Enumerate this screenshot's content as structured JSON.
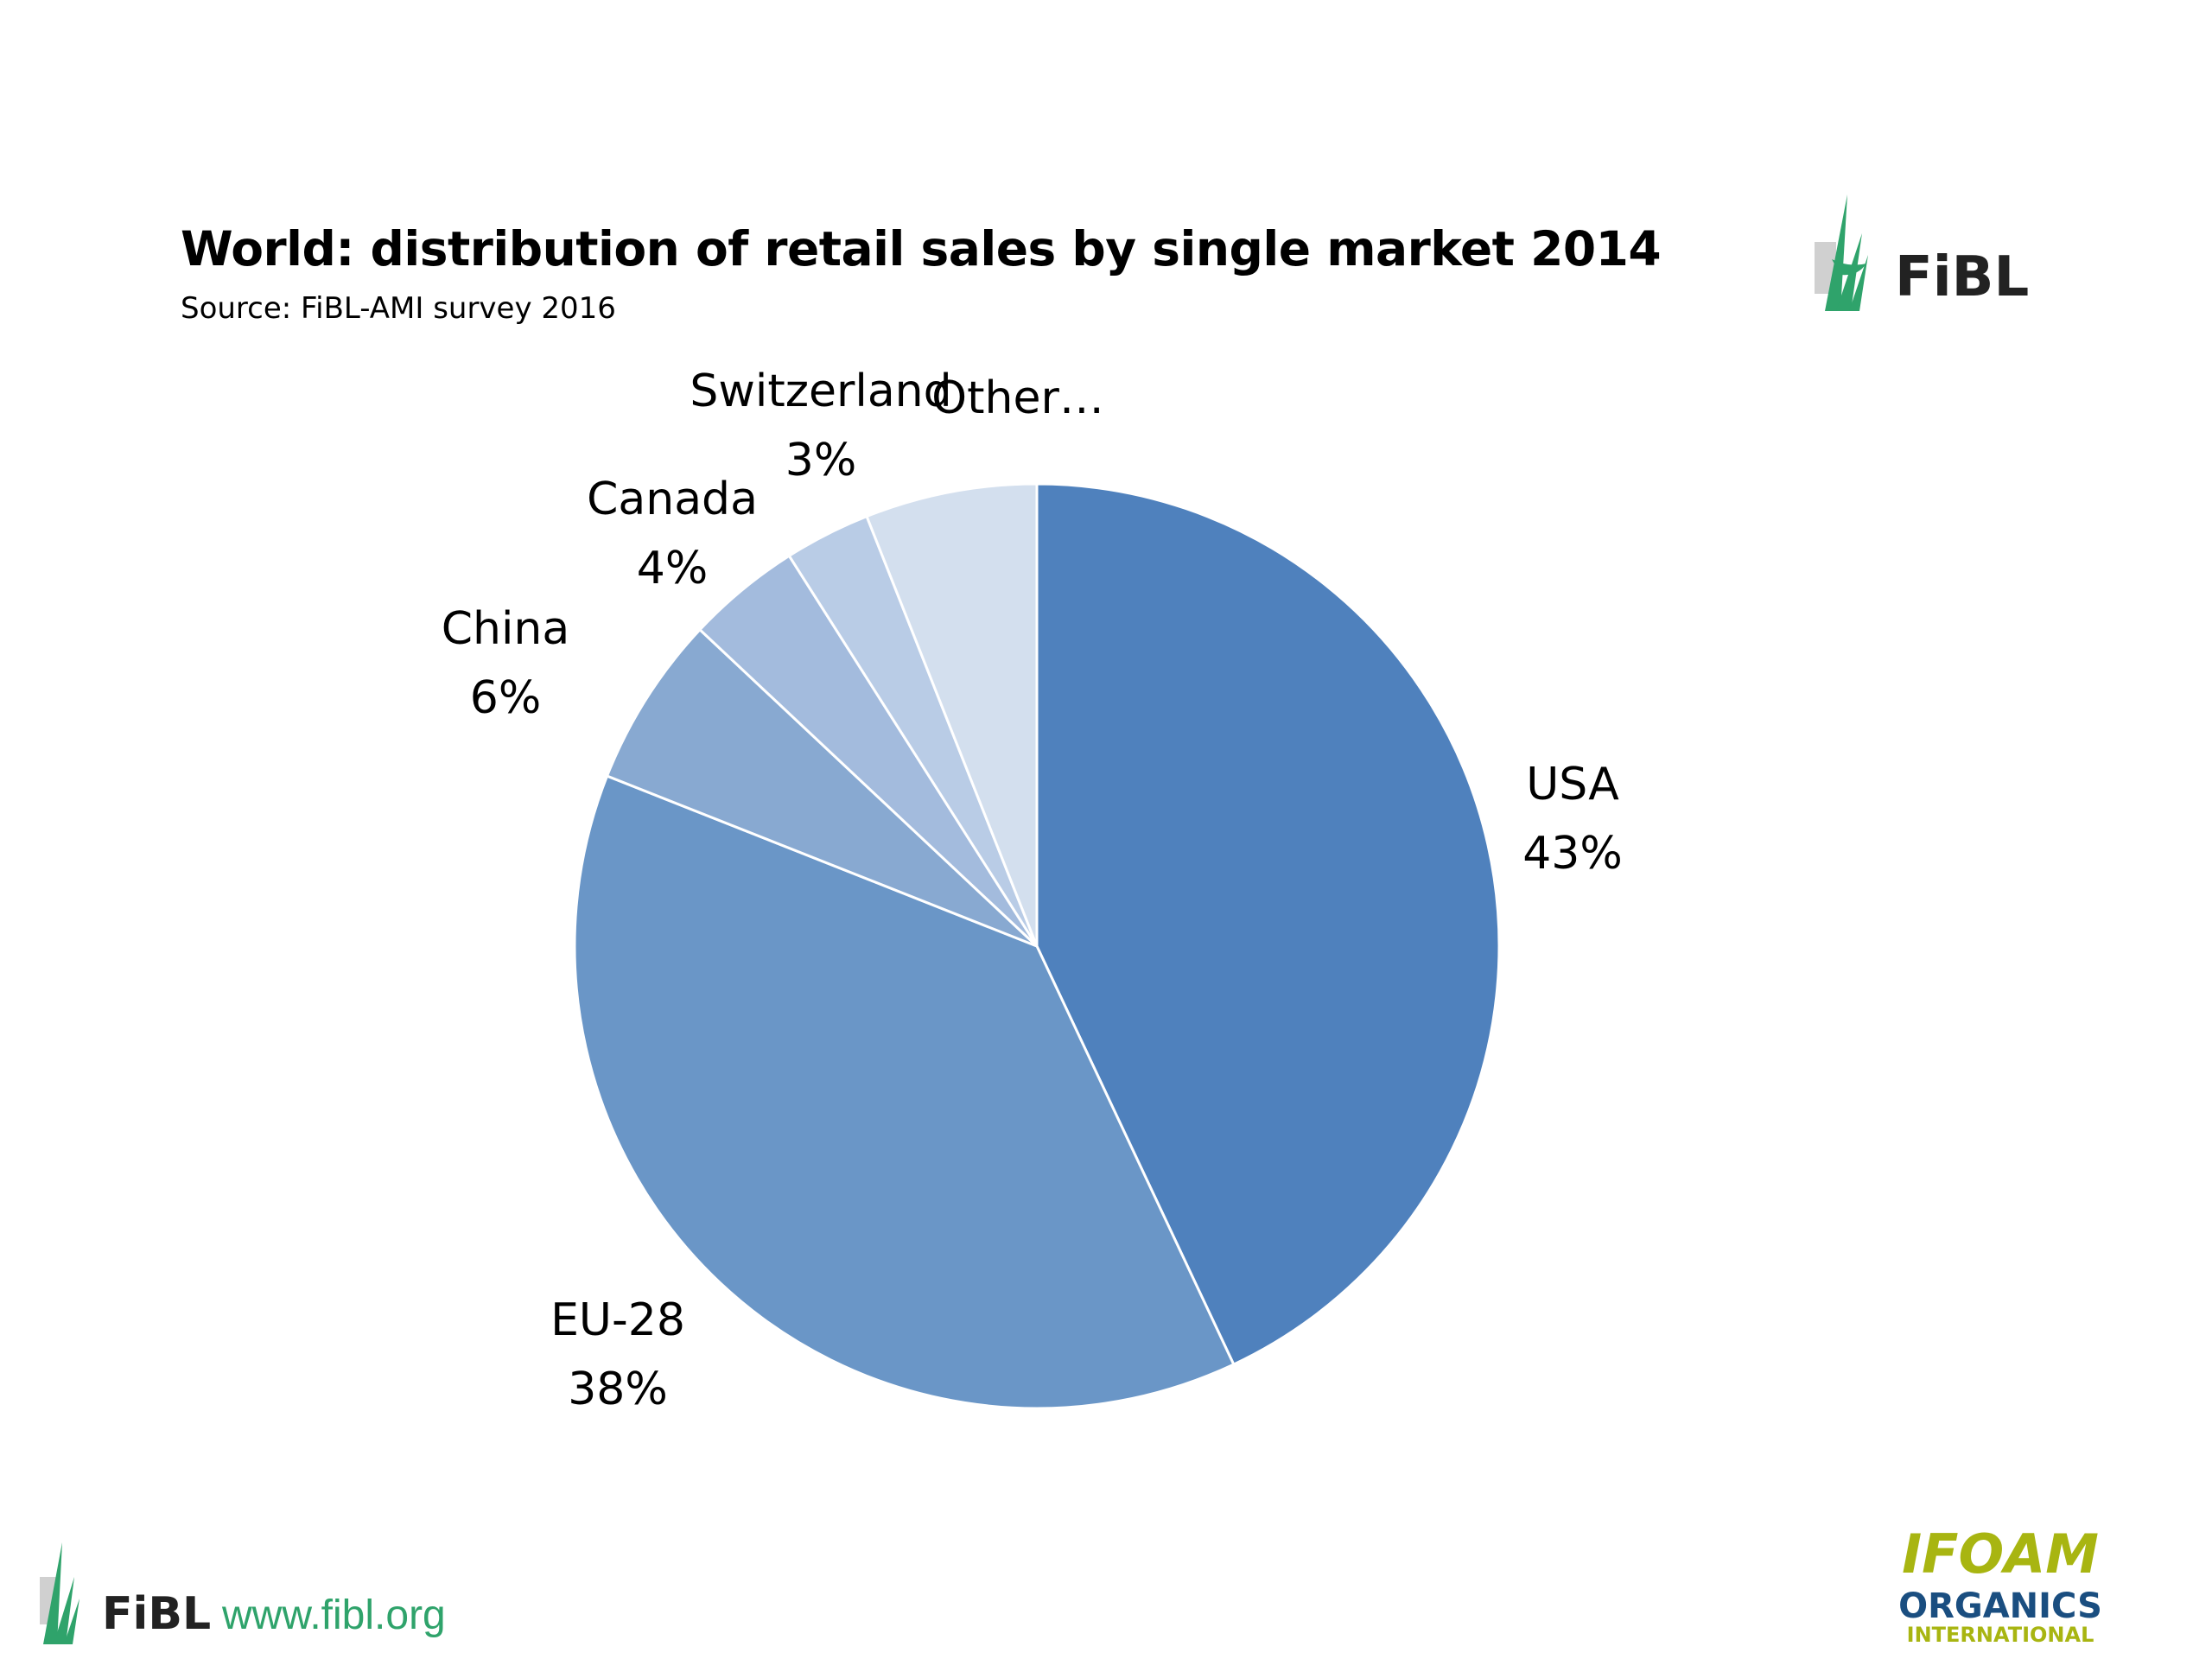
{
  "slide": {
    "title": "World: distribution of retail sales by single market 2014",
    "subtitle": "Source: FiBL-AMI survey 2016"
  },
  "logos": {
    "top_right": {
      "icon": "fibl-logo-icon",
      "text": "FiBL"
    },
    "footer_left": {
      "icon": "fibl-logo-icon",
      "text": "FiBL"
    },
    "footer_right": {
      "icon": "ifoam-organics-international-logo-icon",
      "line1": "IFOAM",
      "line2": "ORGANICS",
      "line3": "INTERNATIONAL"
    }
  },
  "footer": {
    "url": "www.fibl.org"
  },
  "colors": {
    "usa": "#4f81bd",
    "eu28": "#6a96c7",
    "china": "#88a9d1",
    "canada": "#a3bbdd",
    "switzerland": "#b9cce6",
    "other": "#d3dfee",
    "fibl_green": "#2fa36b",
    "ifoam_yellow": "#a8b511",
    "ifoam_blue": "#1a4e80"
  },
  "chart_data": {
    "type": "pie",
    "title": "World: distribution of retail sales by single market 2014",
    "subtitle": "Source: FiBL-AMI survey 2016",
    "start_angle": "12 o'clock",
    "direction": "clockwise",
    "slices": [
      {
        "label": "USA",
        "value": 43,
        "display": "43%",
        "color": "#4f81bd"
      },
      {
        "label": "EU-28",
        "value": 38,
        "display": "38%",
        "color": "#6a96c7"
      },
      {
        "label": "China",
        "value": 6,
        "display": "6%",
        "color": "#88a9d1"
      },
      {
        "label": "Canada",
        "value": 4,
        "display": "4%",
        "color": "#a3bbdd"
      },
      {
        "label": "Switzerland",
        "value": 3,
        "display": "3%",
        "color": "#b9cce6"
      },
      {
        "label": "Other…",
        "value": 6,
        "display": "",
        "color": "#d3dfee"
      }
    ]
  }
}
